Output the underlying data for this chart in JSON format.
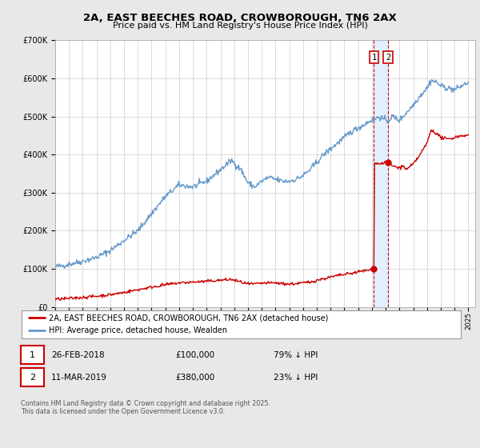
{
  "title": "2A, EAST BEECHES ROAD, CROWBOROUGH, TN6 2AX",
  "subtitle": "Price paid vs. HM Land Registry's House Price Index (HPI)",
  "bg_color": "#e8e8e8",
  "plot_bg_color": "#ffffff",
  "grid_color": "#cccccc",
  "red_color": "#cc0000",
  "blue_color": "#6699cc",
  "x_start_year": 1995,
  "x_end_year": 2025,
  "y_max": 700000,
  "event1_year": 2018.15,
  "event2_year": 2019.18,
  "event1_price": 100000,
  "event2_price": 380000,
  "legend_label_red": "2A, EAST BEECHES ROAD, CROWBOROUGH, TN6 2AX (detached house)",
  "legend_label_blue": "HPI: Average price, detached house, Wealden",
  "table_row1": [
    "1",
    "26-FEB-2018",
    "£100,000",
    "79% ↓ HPI"
  ],
  "table_row2": [
    "2",
    "11-MAR-2019",
    "£380,000",
    "23% ↓ HPI"
  ],
  "footnote": "Contains HM Land Registry data © Crown copyright and database right 2025.\nThis data is licensed under the Open Government Licence v3.0.",
  "span_color": "#ddeeff",
  "span_alpha": 0.85
}
